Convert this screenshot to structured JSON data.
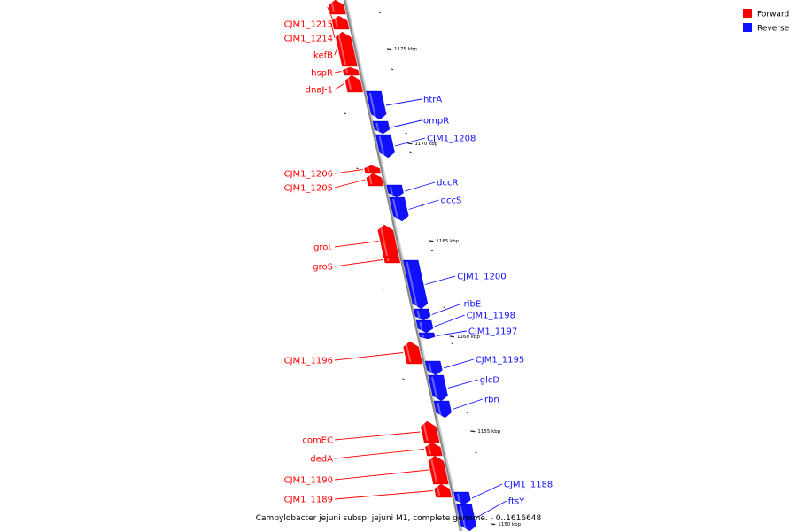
{
  "caption": "Campylobacter jejuni subsp. jejuni M1, complete genome. - 0..1616648",
  "colors": {
    "forward": "#ff0000",
    "reverse": "#1010ff",
    "backbone": "#8a8a8a"
  },
  "legend": {
    "items": [
      {
        "label": "Forward",
        "color": "#ff0000"
      },
      {
        "label": "Reverse",
        "color": "#1010ff"
      }
    ]
  },
  "scale_labels": [
    "1175 kbp",
    "1170 kbp",
    "1165 kbp",
    "1160 kbp",
    "1155 kbp",
    "1150 kbp"
  ],
  "genes": [
    {
      "name": "CJM1_1215",
      "strand": "forward"
    },
    {
      "name": "CJM1_1214",
      "strand": "forward"
    },
    {
      "name": "kefB",
      "strand": "forward"
    },
    {
      "name": "hspR",
      "strand": "forward"
    },
    {
      "name": "dnaJ-1",
      "strand": "forward"
    },
    {
      "name": "htrA",
      "strand": "reverse"
    },
    {
      "name": "ompR",
      "strand": "reverse"
    },
    {
      "name": "CJM1_1208",
      "strand": "reverse"
    },
    {
      "name": "CJM1_1206",
      "strand": "forward"
    },
    {
      "name": "CJM1_1205",
      "strand": "forward"
    },
    {
      "name": "dccR",
      "strand": "reverse"
    },
    {
      "name": "dccS",
      "strand": "reverse"
    },
    {
      "name": "groL",
      "strand": "forward"
    },
    {
      "name": "groS",
      "strand": "forward"
    },
    {
      "name": "CJM1_1200",
      "strand": "reverse"
    },
    {
      "name": "ribE",
      "strand": "reverse"
    },
    {
      "name": "CJM1_1198",
      "strand": "reverse"
    },
    {
      "name": "CJM1_1197",
      "strand": "reverse"
    },
    {
      "name": "CJM1_1196",
      "strand": "forward"
    },
    {
      "name": "CJM1_1195",
      "strand": "reverse"
    },
    {
      "name": "glcD",
      "strand": "reverse"
    },
    {
      "name": "rbn",
      "strand": "reverse"
    },
    {
      "name": "comEC",
      "strand": "forward"
    },
    {
      "name": "dedA",
      "strand": "forward"
    },
    {
      "name": "CJM1_1190",
      "strand": "forward"
    },
    {
      "name": "CJM1_1189",
      "strand": "forward"
    },
    {
      "name": "CJM1_1188",
      "strand": "reverse"
    },
    {
      "name": "ftsY",
      "strand": "reverse"
    }
  ]
}
